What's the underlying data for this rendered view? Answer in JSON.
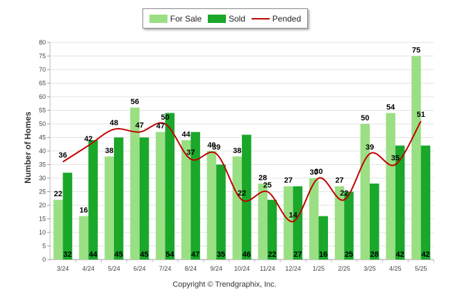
{
  "legend": [
    {
      "label": "For Sale",
      "color": "#9bdf84",
      "kind": "bar"
    },
    {
      "label": "Sold",
      "color": "#1aa72a",
      "kind": "bar"
    },
    {
      "label": "Pended",
      "color": "#c00000",
      "kind": "line"
    }
  ],
  "ylabel": "Number of Homes",
  "copyright": "Copyright © Trendgraphix, Inc.",
  "chart_data": {
    "type": "bar",
    "categories": [
      "3/24",
      "4/24",
      "5/24",
      "6/24",
      "7/24",
      "8/24",
      "9/24",
      "10/24",
      "11/24",
      "12/24",
      "1/25",
      "2/25",
      "3/25",
      "4/25",
      "5/25"
    ],
    "series": [
      {
        "name": "For Sale",
        "type": "bar",
        "color": "#9bdf84",
        "values": [
          22,
          16,
          38,
          56,
          47,
          44,
          40,
          38,
          28,
          27,
          30,
          27,
          50,
          54,
          75
        ]
      },
      {
        "name": "Sold",
        "type": "bar",
        "color": "#1aa72a",
        "values": [
          32,
          44,
          45,
          45,
          54,
          47,
          35,
          46,
          22,
          27,
          16,
          25,
          28,
          42,
          42
        ]
      },
      {
        "name": "Pended",
        "type": "line",
        "color": "#c00000",
        "values": [
          36,
          42,
          48,
          47,
          50,
          37,
          39,
          22,
          25,
          14,
          30,
          22,
          39,
          35,
          51
        ]
      }
    ],
    "ylabel": "Number of Homes",
    "ylim": [
      0,
      80
    ],
    "yticks": [
      0,
      5,
      10,
      15,
      20,
      25,
      30,
      35,
      40,
      45,
      50,
      55,
      60,
      65,
      70,
      75,
      80
    ],
    "grid": true,
    "legend_position": "top-center"
  }
}
